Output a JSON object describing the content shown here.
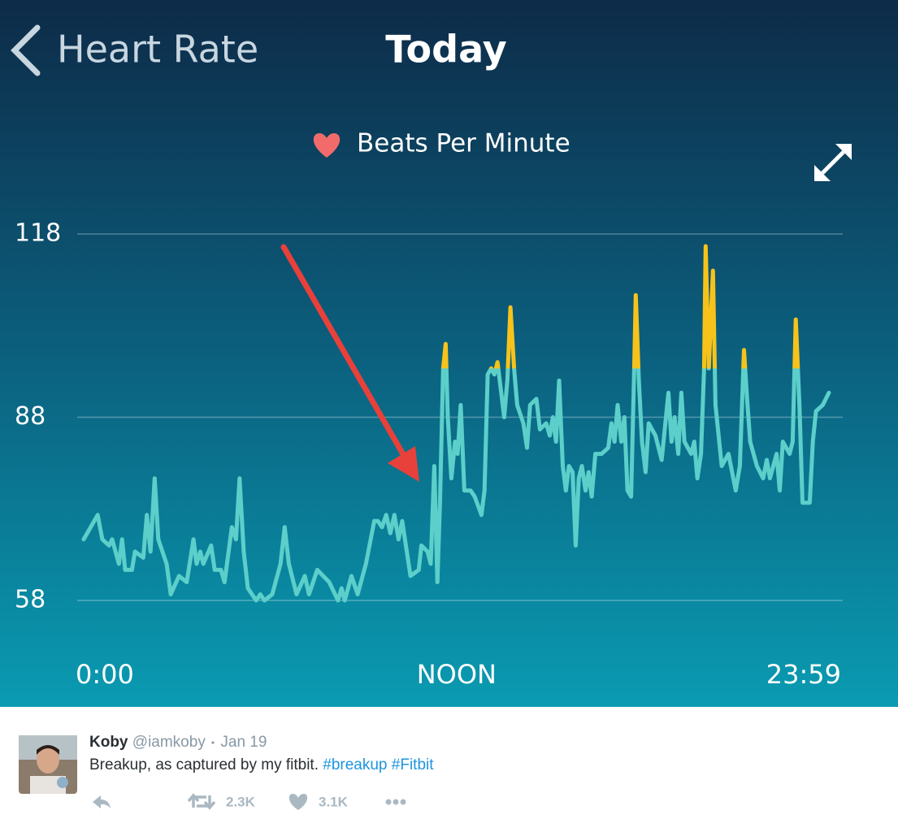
{
  "header": {
    "back_label": "Heart Rate",
    "title": "Today"
  },
  "chart_data": {
    "type": "line",
    "title": "Beats Per Minute",
    "x": [
      0,
      27,
      36,
      49,
      55,
      68,
      74,
      80,
      93,
      99,
      115,
      122,
      129,
      137,
      144,
      160,
      168,
      184,
      199,
      212,
      218,
      225,
      231,
      246,
      253,
      265,
      272,
      286,
      294,
      301,
      309,
      317,
      333,
      341,
      349,
      364,
      380,
      388,
      396,
      411,
      427,
      435,
      451,
      474,
      491,
      498,
      504,
      517,
      529,
      545,
      561,
      568,
      576,
      584,
      592,
      600,
      608,
      615,
      631,
      647,
      652,
      664,
      670,
      677,
      683,
      688,
      694,
      699,
      703,
      710,
      717,
      722,
      728,
      735,
      747,
      755,
      768,
      774,
      780,
      787,
      793,
      799,
      812,
      818,
      824,
      831,
      837,
      849,
      856,
      862,
      874,
      881,
      893,
      900,
      906,
      912,
      918,
      925,
      931,
      937,
      944,
      950,
      956,
      962,
      969,
      975,
      981,
      988,
      1000,
      1013,
      1019,
      1025,
      1031,
      1038,
      1044,
      1050,
      1057,
      1063,
      1066,
      1072,
      1078,
      1085,
      1091,
      1104,
      1116,
      1129,
      1135,
      1141,
      1148,
      1154,
      1160,
      1173,
      1179,
      1185,
      1192,
      1198,
      1201,
      1207,
      1215,
      1220,
      1232,
      1245,
      1259,
      1267,
      1275,
      1281,
      1287,
      1300,
      1312,
      1319,
      1325,
      1338,
      1344,
      1350,
      1363,
      1369,
      1375,
      1382,
      1388,
      1402,
      1408,
      1414,
      1427,
      1439
    ],
    "series": [
      {
        "color": "#5ccfca",
        "values": [
          68,
          72,
          68,
          67,
          68,
          64,
          68,
          63,
          63,
          66,
          65,
          72,
          66,
          78,
          68,
          64,
          59,
          62,
          61,
          68,
          64,
          66,
          64,
          67,
          63,
          63,
          61,
          70,
          68,
          78,
          66,
          60,
          58,
          59,
          58,
          59,
          64,
          70,
          64,
          59,
          62,
          59,
          63,
          61,
          58,
          60,
          58,
          62,
          59,
          64,
          71,
          71,
          70,
          72,
          69,
          72,
          68,
          71,
          62,
          63,
          67,
          66,
          64,
          80,
          61,
          74,
          96,
          100,
          88,
          78,
          84,
          82,
          90,
          76,
          76,
          75,
          72,
          76,
          95,
          96,
          95,
          97,
          88,
          94,
          106,
          96,
          90,
          87,
          83,
          90,
          91,
          86,
          87,
          85,
          88,
          84,
          94,
          80,
          76,
          80,
          79,
          67,
          78,
          80,
          76,
          79,
          75,
          82,
          82,
          83,
          87,
          84,
          90,
          84,
          88,
          76,
          75,
          96,
          108,
          94,
          84,
          79,
          87,
          85,
          81,
          92,
          84,
          88,
          82,
          92,
          84,
          82,
          84,
          78,
          82,
          96,
          116,
          96,
          112,
          90,
          80,
          82,
          76,
          80,
          99,
          91,
          84,
          80,
          78,
          81,
          78,
          82,
          76,
          84,
          82,
          84,
          104,
          90,
          74,
          74,
          84,
          89,
          90,
          92
        ]
      }
    ],
    "highlight": {
      "color": "#f7c31a",
      "above": 96
    },
    "xlim": [
      0,
      1439
    ],
    "xticks": [
      {
        "value": 0,
        "label": "0:00"
      },
      {
        "value": 720,
        "label": "NOON"
      },
      {
        "value": 1439,
        "label": "23:59"
      }
    ],
    "ylim": [
      58,
      118
    ],
    "yticks": [
      58,
      88,
      118
    ],
    "grid": true
  },
  "tweet": {
    "name": "Koby",
    "handle": "@iamkoby",
    "date": "Jan 19",
    "text": "Breakup, as captured by my fitbit.",
    "hashtags": [
      "#breakup",
      "#Fitbit"
    ],
    "retweets": "2.3K",
    "likes": "3.1K"
  }
}
